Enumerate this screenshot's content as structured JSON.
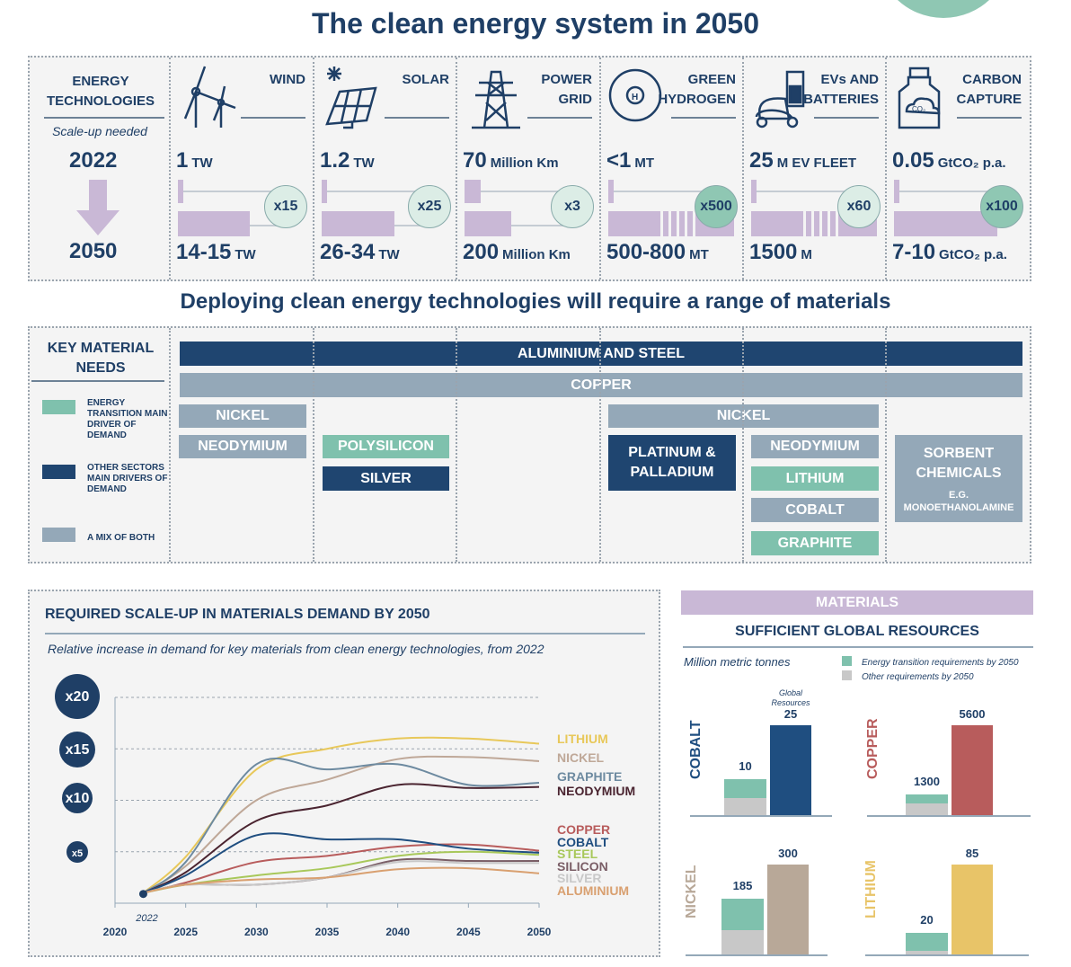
{
  "title": "The clean energy system in 2050",
  "technologies": {
    "header_lines": [
      "ENERGY",
      "TECHNOLOGIES"
    ],
    "scale_label": "Scale-up needed",
    "year_from": "2022",
    "year_to": "2050",
    "columns": [
      {
        "name": [
          "WIND",
          ""
        ],
        "icon": "wind-turbine-icon",
        "v2022": "1",
        "u2022": "TW",
        "v2050": "14-15",
        "u2050": "TW",
        "multiplier": "x15",
        "bar_2050_fraction": 0.57,
        "highlight": false,
        "striped": false
      },
      {
        "name": [
          "SOLAR",
          ""
        ],
        "icon": "solar-panel-icon",
        "v2022": "1.2",
        "u2022": "TW",
        "v2050": "26-34",
        "u2050": "TW",
        "multiplier": "x25",
        "bar_2050_fraction": 0.58,
        "highlight": false,
        "striped": false
      },
      {
        "name": [
          "POWER",
          "GRID"
        ],
        "icon": "power-pylon-icon",
        "v2022": "70",
        "u2022": "Million Km",
        "v2050": "200",
        "u2050": "Million Km",
        "multiplier": "x3",
        "bar_2050_fraction": 0.37,
        "highlight": false,
        "striped": false
      },
      {
        "name": [
          "GREEN",
          "HYDROGEN"
        ],
        "icon": "hydrogen-atom-icon",
        "v2022": "<1",
        "u2022": "MT",
        "v2050": "500-800",
        "u2050": "MT",
        "multiplier": "x500",
        "bar_2050_fraction": 1,
        "highlight": true,
        "striped": true
      },
      {
        "name": [
          "EVs AND",
          "BATTERIES"
        ],
        "icon": "ev-battery-icon",
        "v2022": "25",
        "u2022": "M EV FLEET",
        "v2050": "1500",
        "u2050": "M",
        "multiplier": "x60",
        "bar_2050_fraction": 1,
        "highlight": false,
        "striped": true
      },
      {
        "name": [
          "CARBON",
          "CAPTURE"
        ],
        "icon": "co2-bottle-icon",
        "v2022": "0.05",
        "u2022": "GtCO₂ p.a.",
        "v2050": "7-10",
        "u2050": "GtCO₂ p.a.",
        "multiplier": "x100",
        "bar_2050_fraction": 0.82,
        "highlight": true,
        "striped": false
      }
    ]
  },
  "materials_subtitle": "Deploying clean energy technologies will require a range of materials",
  "key_materials": {
    "header": "KEY MATERIAL NEEDS",
    "legend": [
      {
        "label": "ENERGY TRANSITION MAIN DRIVER OF DEMAND",
        "color": "#7fc1ad"
      },
      {
        "label": "OTHER SECTORS MAIN DRIVERS OF DEMAND",
        "color": "#1f4570"
      },
      {
        "label": "A MIX OF BOTH",
        "color": "#94a8b8"
      }
    ],
    "bars": {
      "aluminium_steel": "ALUMINIUM AND STEEL",
      "copper": "COPPER",
      "wind_nickel": "NICKEL",
      "wind_neodymium": "NEODYMIUM",
      "polysilicon": "POLYSILICON",
      "silver": "SILVER",
      "nickel": "NICKEL",
      "platinum": "PLATINUM & PALLADIUM",
      "ev_neodymium": "NEODYMIUM",
      "lithium": "LITHIUM",
      "cobalt": "COBALT",
      "graphite": "GRAPHITE",
      "sorbent": "SORBENT CHEMICALS",
      "sorbent_example": "E.G. MONOETHANOLAMINE"
    }
  },
  "chart_data": [
    {
      "type": "line",
      "title": "REQUIRED SCALE-UP IN MATERIALS DEMAND BY 2050",
      "subtitle": "Relative increase in demand for key materials from clean energy technologies, from 2022",
      "x": [
        2022,
        2025,
        2030,
        2035,
        2040,
        2045,
        2050
      ],
      "x_ticks": [
        "2020",
        "2025",
        "2030",
        "2035",
        "2040",
        "2045",
        "2050"
      ],
      "start_label": "2022",
      "y_ticks": [
        "x5",
        "x10",
        "x15",
        "x20"
      ],
      "xlim": [
        2020,
        2050
      ],
      "ylim": [
        0,
        20
      ],
      "grid": true,
      "legend": "right",
      "series": [
        {
          "name": "LITHIUM",
          "color": "#e8c85a",
          "values": [
            1,
            4.5,
            13,
            15,
            16,
            16,
            15.5
          ]
        },
        {
          "name": "NICKEL",
          "color": "#bfa898",
          "values": [
            1,
            3.6,
            10,
            12,
            14,
            14.2,
            13.8
          ]
        },
        {
          "name": "GRAPHITE",
          "color": "#6d8aa0",
          "values": [
            1,
            4,
            13.5,
            13,
            13.5,
            11.5,
            11.7
          ]
        },
        {
          "name": "NEODYMIUM",
          "color": "#4a2430",
          "values": [
            1,
            3,
            8,
            9.5,
            11.5,
            11.2,
            11.3
          ]
        },
        {
          "name": "COPPER",
          "color": "#b85c5c",
          "values": [
            1,
            2,
            4,
            4.6,
            5.5,
            5.7,
            5.1
          ]
        },
        {
          "name": "COBALT",
          "color": "#1f4e80",
          "values": [
            1,
            2.7,
            6.6,
            6.2,
            6.2,
            5.3,
            4.9
          ]
        },
        {
          "name": "STEEL",
          "color": "#a8c85a",
          "values": [
            1,
            1.8,
            2.7,
            3.4,
            4.6,
            5,
            4.7
          ]
        },
        {
          "name": "SILICON",
          "color": "#7a5e66",
          "values": [
            1,
            1.8,
            1.8,
            2.5,
            4.2,
            4.1,
            4.1
          ]
        },
        {
          "name": "SILVER",
          "color": "#c8c8c8",
          "values": [
            1,
            1.8,
            1.8,
            2.5,
            4,
            3.9,
            3.9
          ]
        },
        {
          "name": "ALUMINIUM",
          "color": "#d9a070",
          "values": [
            1,
            1.8,
            2.3,
            2.5,
            3.3,
            3.4,
            2.9
          ]
        }
      ]
    },
    {
      "type": "bar",
      "header": "MATERIALS",
      "title": "SUFFICIENT GLOBAL RESOURCES",
      "unit": "Million metric tonnes",
      "legend": [
        {
          "label": "Energy transition requirements by 2050",
          "color": "#7fc1ad"
        },
        {
          "label": "Other requirements by 2050",
          "color": "#c8c8c8"
        }
      ],
      "resources_label": "Global Resources",
      "materials": [
        {
          "name": "COBALT",
          "color": "#1f4e80",
          "requirements": 10,
          "resources": 25,
          "energy_share": 0.53
        },
        {
          "name": "COPPER",
          "color": "#b85c5c",
          "requirements": 1300,
          "resources": 5600,
          "energy_share": 0.45
        },
        {
          "name": "NICKEL",
          "color": "#b8a898",
          "requirements": 185,
          "resources": 300,
          "energy_share": 0.56
        },
        {
          "name": "LITHIUM",
          "color": "#e8c468",
          "requirements": 20,
          "resources": 85,
          "energy_share": 0.85
        }
      ]
    }
  ]
}
